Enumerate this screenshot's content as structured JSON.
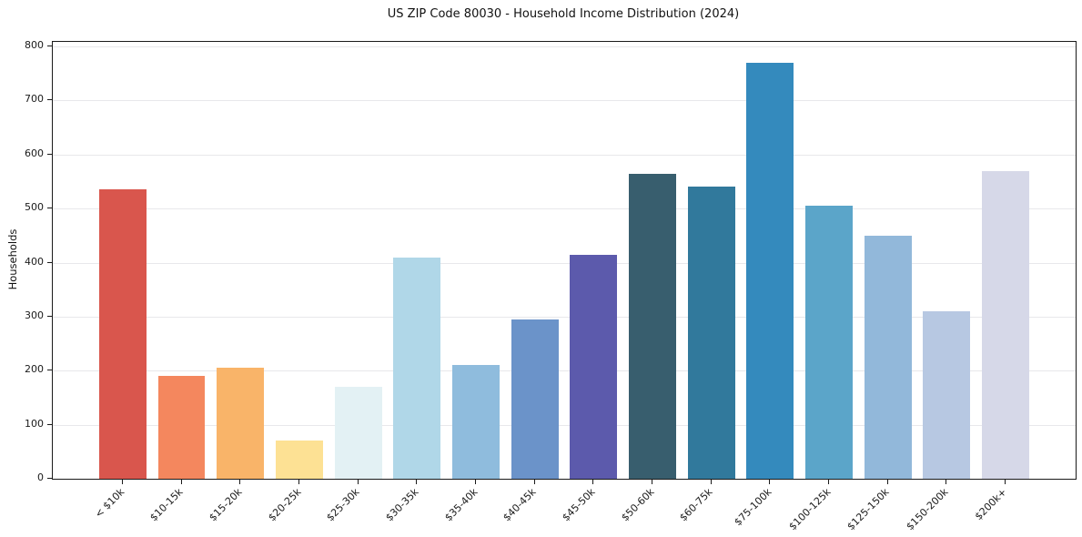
{
  "chart_data": {
    "type": "bar",
    "title": "US ZIP Code 80030 - Household Income Distribution (2024)",
    "xlabel": "",
    "ylabel": "Households",
    "categories": [
      "< $10k",
      "$10-15k",
      "$15-20k",
      "$20-25k",
      "$25-30k",
      "$30-35k",
      "$35-40k",
      "$40-45k",
      "$45-50k",
      "$50-60k",
      "$60-75k",
      "$75-100k",
      "$100-125k",
      "$125-150k",
      "$150-200k",
      "$200k+"
    ],
    "values": [
      535,
      190,
      205,
      70,
      170,
      410,
      210,
      295,
      415,
      565,
      540,
      770,
      505,
      450,
      310,
      570
    ],
    "bar_colors": [
      "#d9564d",
      "#f4875e",
      "#f9b469",
      "#fde194",
      "#e3f1f4",
      "#b0d7e8",
      "#8fbcdd",
      "#6b93c9",
      "#5c5aac",
      "#385e6e",
      "#31799c",
      "#348abd",
      "#5ba5c9",
      "#92b8da",
      "#b7c8e2",
      "#d6d8e8"
    ],
    "yticks": [
      0,
      100,
      200,
      300,
      400,
      500,
      600,
      700,
      800
    ],
    "ylim": [
      0,
      808.5
    ],
    "bar_width_fraction": 0.8,
    "x_margin_fraction": 0.05,
    "x_tick_rotation_deg": -45,
    "grid": "horizontal",
    "legend": "none",
    "colors": {
      "background": "#ffffff",
      "grid": "#e8e8eb",
      "spine": "#1a1a1a",
      "text": "#1a1a1a"
    }
  }
}
